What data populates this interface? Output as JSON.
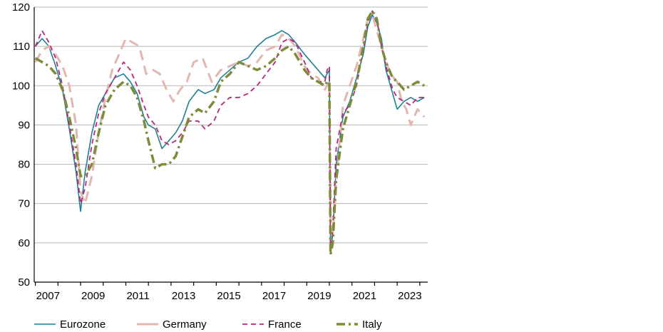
{
  "chart_data": {
    "type": "line",
    "title": "",
    "xlabel": "",
    "ylabel": "",
    "xlim": [
      2006.95,
      2024.35
    ],
    "ylim": [
      50,
      120
    ],
    "yticks": [
      50,
      60,
      70,
      80,
      90,
      100,
      110,
      120
    ],
    "xtick_labels": [
      "2007",
      "2009",
      "2011",
      "2013",
      "2015",
      "2017",
      "2019",
      "2021",
      "2023"
    ],
    "grid": "horizontal",
    "legend_position": "bottom",
    "series": [
      {
        "name": "Eurozone",
        "color": "#1e7f95",
        "style": "solid",
        "x": [
          2007.0,
          2007.3,
          2007.6,
          2007.9,
          2008.2,
          2008.5,
          2008.8,
          2009.0,
          2009.2,
          2009.5,
          2009.8,
          2010.1,
          2010.5,
          2010.9,
          2011.2,
          2011.5,
          2011.8,
          2012.0,
          2012.3,
          2012.6,
          2012.9,
          2013.2,
          2013.5,
          2013.8,
          2014.2,
          2014.5,
          2014.9,
          2015.2,
          2015.6,
          2016.0,
          2016.4,
          2016.8,
          2017.2,
          2017.6,
          2017.9,
          2018.2,
          2018.5,
          2018.9,
          2019.2,
          2019.5,
          2019.8,
          2019.9,
          2020.0,
          2020.05,
          2020.15,
          2020.3,
          2020.6,
          2020.9,
          2021.2,
          2021.5,
          2021.7,
          2021.9,
          2022.1,
          2022.3,
          2022.5,
          2022.8,
          2023.0,
          2023.3,
          2023.6,
          2023.9,
          2024.2
        ],
        "y": [
          110,
          112,
          110,
          105,
          99,
          89,
          78,
          68,
          78,
          88,
          95,
          98,
          102,
          103,
          101,
          98,
          92,
          90,
          89,
          84,
          86,
          88,
          91,
          96,
          99,
          98,
          99,
          102,
          104,
          106,
          107,
          110,
          112,
          113,
          114,
          113,
          111,
          108,
          106,
          104,
          102,
          103,
          104,
          58,
          62,
          80,
          92,
          96,
          102,
          108,
          115,
          118,
          116,
          112,
          104,
          98,
          94,
          96,
          97,
          96,
          97
        ]
      },
      {
        "name": "Germany",
        "color": "#e2b7b0",
        "style": "long-dash",
        "x": [
          2007.0,
          2007.3,
          2007.6,
          2007.9,
          2008.2,
          2008.5,
          2008.8,
          2009.0,
          2009.2,
          2009.5,
          2009.8,
          2010.1,
          2010.4,
          2010.7,
          2011.0,
          2011.3,
          2011.6,
          2011.9,
          2012.2,
          2012.5,
          2012.8,
          2013.1,
          2013.4,
          2013.7,
          2014.0,
          2014.4,
          2014.8,
          2015.2,
          2015.6,
          2016.0,
          2016.4,
          2016.8,
          2017.2,
          2017.6,
          2017.9,
          2018.2,
          2018.5,
          2018.9,
          2019.2,
          2019.5,
          2019.8,
          2019.9,
          2020.0,
          2020.05,
          2020.15,
          2020.3,
          2020.6,
          2020.9,
          2021.2,
          2021.5,
          2021.7,
          2021.9,
          2022.1,
          2022.4,
          2022.7,
          2023.0,
          2023.2,
          2023.4,
          2023.6,
          2023.9,
          2024.2
        ],
        "y": [
          106,
          109,
          110,
          108,
          105,
          100,
          90,
          73,
          70,
          77,
          88,
          97,
          104,
          108,
          112,
          111,
          110,
          103,
          104,
          103,
          99,
          96,
          99,
          101,
          106,
          107,
          101,
          104,
          105,
          106,
          105,
          106,
          109,
          110,
          113,
          112,
          110,
          105,
          103,
          102,
          99,
          100,
          101,
          66,
          62,
          75,
          95,
          100,
          105,
          112,
          117,
          118,
          114,
          108,
          103,
          101,
          96,
          94,
          90,
          94,
          92
        ]
      },
      {
        "name": "France",
        "color": "#b5287d",
        "style": "dash",
        "x": [
          2007.0,
          2007.3,
          2007.6,
          2007.9,
          2008.2,
          2008.5,
          2008.8,
          2009.0,
          2009.2,
          2009.5,
          2009.8,
          2010.1,
          2010.5,
          2010.9,
          2011.2,
          2011.5,
          2011.8,
          2012.0,
          2012.3,
          2012.6,
          2012.9,
          2013.2,
          2013.5,
          2013.8,
          2014.2,
          2014.5,
          2014.9,
          2015.2,
          2015.6,
          2016.0,
          2016.4,
          2016.8,
          2017.2,
          2017.6,
          2017.9,
          2018.2,
          2018.5,
          2018.9,
          2019.2,
          2019.5,
          2019.8,
          2019.9,
          2020.0,
          2020.05,
          2020.15,
          2020.3,
          2020.6,
          2020.9,
          2021.2,
          2021.5,
          2021.7,
          2021.9,
          2022.1,
          2022.3,
          2022.5,
          2022.8,
          2023.0,
          2023.3,
          2023.6,
          2023.9,
          2024.2
        ],
        "y": [
          110,
          114,
          111,
          107,
          100,
          90,
          80,
          70,
          74,
          85,
          93,
          98,
          102,
          106,
          104,
          100,
          95,
          92,
          90,
          86,
          85,
          86,
          88,
          91,
          91,
          89,
          91,
          95,
          97,
          97,
          98,
          100,
          103,
          106,
          111,
          112,
          111,
          106,
          102,
          101,
          101,
          104,
          105,
          57,
          64,
          84,
          93,
          95,
          100,
          109,
          116,
          119,
          117,
          110,
          105,
          99,
          97,
          96,
          95,
          97,
          97
        ]
      },
      {
        "name": "Italy",
        "color": "#7d8c3a",
        "style": "dash-dot",
        "x": [
          2007.0,
          2007.3,
          2007.6,
          2007.9,
          2008.2,
          2008.5,
          2008.8,
          2009.0,
          2009.2,
          2009.5,
          2009.8,
          2010.1,
          2010.5,
          2010.9,
          2011.2,
          2011.5,
          2011.8,
          2012.0,
          2012.3,
          2012.6,
          2012.9,
          2013.2,
          2013.5,
          2013.8,
          2014.2,
          2014.5,
          2014.9,
          2015.2,
          2015.6,
          2016.0,
          2016.4,
          2016.8,
          2017.2,
          2017.6,
          2017.9,
          2018.2,
          2018.5,
          2018.9,
          2019.2,
          2019.5,
          2019.8,
          2019.9,
          2020.0,
          2020.05,
          2020.15,
          2020.3,
          2020.6,
          2020.9,
          2021.2,
          2021.5,
          2021.7,
          2021.9,
          2022.1,
          2022.3,
          2022.5,
          2022.8,
          2023.0,
          2023.3,
          2023.6,
          2023.9,
          2024.2
        ],
        "y": [
          107,
          106,
          105,
          103,
          99,
          92,
          84,
          77,
          77,
          80,
          88,
          95,
          99,
          101,
          100,
          97,
          91,
          86,
          79,
          80,
          80,
          82,
          87,
          92,
          94,
          93,
          96,
          101,
          103,
          106,
          105,
          104,
          105,
          107,
          109,
          110,
          108,
          104,
          102,
          101,
          100,
          101,
          101,
          57,
          60,
          76,
          89,
          95,
          101,
          110,
          117,
          119,
          117,
          110,
          106,
          102,
          101,
          99,
          100,
          101,
          100
        ]
      }
    ]
  }
}
